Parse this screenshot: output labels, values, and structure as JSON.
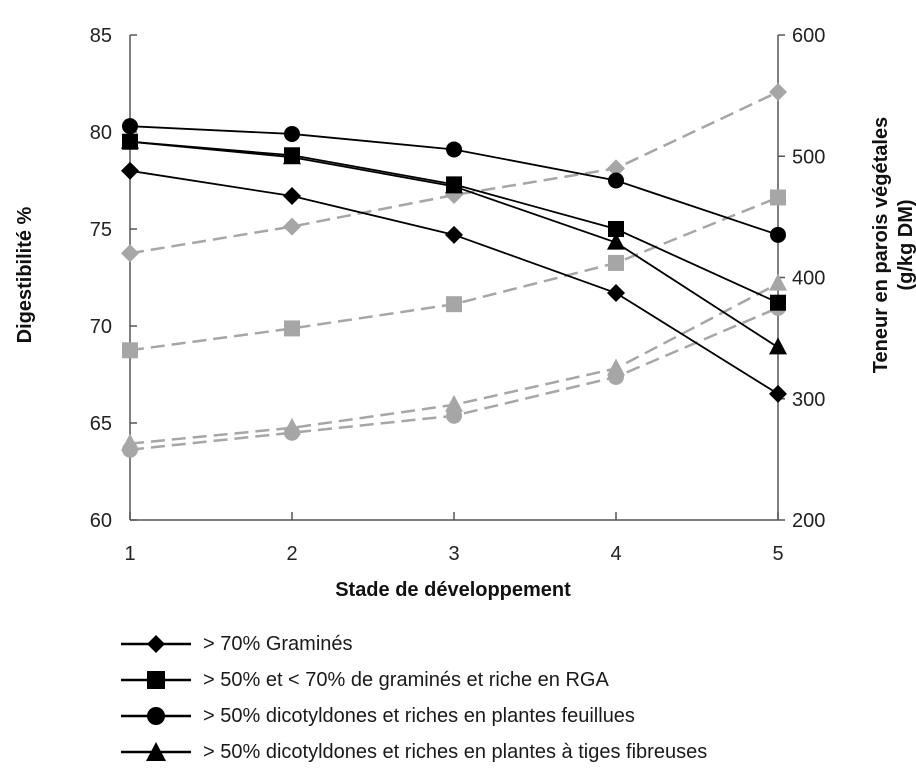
{
  "chart_data": {
    "type": "line",
    "x": [
      1,
      2,
      3,
      4,
      5
    ],
    "xlabel": "Stade de développement",
    "ylabel_left": "Digestibilité %",
    "ylabel_right": "Teneur en parois végétales (g/kg DM)",
    "ylabel_right_lines": [
      "Teneur en parois végétales",
      "(g/kg DM)"
    ],
    "ylim_left": [
      60,
      85
    ],
    "ylim_right": [
      200,
      600
    ],
    "x_ticks": [
      "1",
      "2",
      "3",
      "4",
      "5"
    ],
    "y_left_ticks": [
      "60",
      "65",
      "70",
      "75",
      "80",
      "85"
    ],
    "y_right_ticks": [
      "200",
      "300",
      "400",
      "500",
      "600"
    ],
    "grid": false,
    "legend_position": "bottom",
    "series": [
      {
        "name": "> 70% Graminés",
        "marker": "diamond",
        "axis": "left",
        "color": "#000000",
        "values": [
          78.0,
          76.7,
          74.7,
          71.7,
          66.5
        ]
      },
      {
        "name": "> 50% et < 70% de graminés et riche en RGA",
        "marker": "square",
        "axis": "left",
        "color": "#000000",
        "values": [
          79.5,
          78.8,
          77.3,
          75.0,
          71.2
        ]
      },
      {
        "name": "> 50% dicotyldones et riches en plantes feuillues",
        "marker": "circle",
        "axis": "left",
        "color": "#000000",
        "values": [
          80.3,
          79.9,
          79.1,
          77.5,
          74.7
        ]
      },
      {
        "name": "> 50% dicotyldones et riches en plantes à tiges fibreuses",
        "marker": "triangle",
        "axis": "left",
        "color": "#000000",
        "values": [
          79.5,
          78.7,
          77.2,
          74.3,
          68.9
        ]
      },
      {
        "marker": "diamond",
        "axis": "right",
        "color": "#a6a6a6",
        "dashed": true,
        "values": [
          420,
          442,
          468,
          490,
          553
        ]
      },
      {
        "marker": "square",
        "axis": "right",
        "color": "#a6a6a6",
        "dashed": true,
        "values": [
          340,
          358,
          378,
          412,
          466
        ]
      },
      {
        "marker": "triangle",
        "axis": "right",
        "color": "#a6a6a6",
        "dashed": true,
        "values": [
          263,
          276,
          295,
          325,
          395
        ]
      },
      {
        "marker": "circle",
        "axis": "right",
        "color": "#a6a6a6",
        "dashed": true,
        "values": [
          258,
          272,
          286,
          318,
          375
        ]
      }
    ]
  }
}
